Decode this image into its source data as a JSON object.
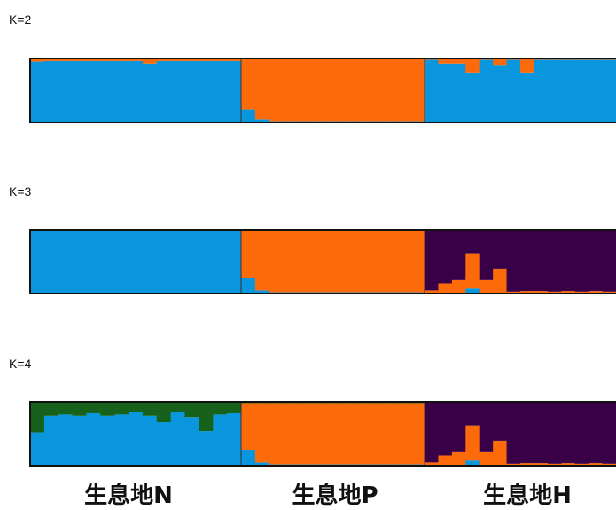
{
  "chart_data": [
    {
      "type": "stacked-bar",
      "title": "K=2",
      "colors": [
        "#0a96dc",
        "#fc6a0a"
      ],
      "groups": [
        {
          "label": "生息地N",
          "n": 15
        },
        {
          "label": "生息地P",
          "n": 13
        },
        {
          "label": "生息地H",
          "n": 14
        }
      ],
      "components": [
        [
          0.95,
          0.96,
          0.96,
          0.96,
          0.96,
          0.96,
          0.96,
          0.96,
          0.92,
          0.96,
          0.96,
          0.96,
          0.96,
          0.96,
          0.96,
          0.2,
          0.05,
          0.02,
          0.02,
          0.02,
          0.02,
          0.02,
          0.02,
          0.02,
          0.02,
          0.02,
          0.02,
          0.02,
          0.98,
          0.92,
          0.92,
          0.78,
          0.98,
          0.9,
          0.98,
          0.78,
          0.98,
          0.98,
          0.98,
          0.98,
          0.98,
          0.98
        ],
        [
          0.05,
          0.04,
          0.04,
          0.04,
          0.04,
          0.04,
          0.04,
          0.04,
          0.08,
          0.04,
          0.04,
          0.04,
          0.04,
          0.04,
          0.04,
          0.8,
          0.95,
          0.98,
          0.98,
          0.98,
          0.98,
          0.98,
          0.98,
          0.98,
          0.98,
          0.98,
          0.98,
          0.98,
          0.02,
          0.08,
          0.08,
          0.22,
          0.02,
          0.1,
          0.02,
          0.22,
          0.02,
          0.02,
          0.02,
          0.02,
          0.02,
          0.02
        ]
      ]
    },
    {
      "type": "stacked-bar",
      "title": "K=3",
      "colors": [
        "#0a96dc",
        "#fc6a0a",
        "#3a0047"
      ],
      "groups": [
        {
          "label": "生息地N",
          "n": 15
        },
        {
          "label": "生息地P",
          "n": 13
        },
        {
          "label": "生息地H",
          "n": 14
        }
      ],
      "components": [
        [
          0.98,
          0.98,
          0.98,
          0.98,
          0.98,
          0.98,
          0.98,
          0.98,
          0.98,
          0.98,
          0.98,
          0.98,
          0.98,
          0.98,
          0.98,
          0.25,
          0.05,
          0.02,
          0.02,
          0.02,
          0.02,
          0.02,
          0.02,
          0.02,
          0.02,
          0.02,
          0.02,
          0.02,
          0.01,
          0.01,
          0.01,
          0.08,
          0.01,
          0.01,
          0.01,
          0.01,
          0.01,
          0.01,
          0.01,
          0.01,
          0.01,
          0.01
        ],
        [
          0.02,
          0.02,
          0.02,
          0.02,
          0.02,
          0.02,
          0.02,
          0.02,
          0.02,
          0.02,
          0.02,
          0.02,
          0.02,
          0.02,
          0.02,
          0.75,
          0.95,
          0.98,
          0.98,
          0.98,
          0.98,
          0.98,
          0.98,
          0.98,
          0.98,
          0.98,
          0.98,
          0.98,
          0.04,
          0.15,
          0.2,
          0.55,
          0.2,
          0.38,
          0.02,
          0.03,
          0.03,
          0.02,
          0.03,
          0.02,
          0.03,
          0.02
        ],
        [
          0,
          0,
          0,
          0,
          0,
          0,
          0,
          0,
          0,
          0,
          0,
          0,
          0,
          0,
          0,
          0,
          0,
          0,
          0,
          0,
          0,
          0,
          0,
          0,
          0,
          0,
          0,
          0,
          0.95,
          0.84,
          0.79,
          0.37,
          0.79,
          0.61,
          0.97,
          0.96,
          0.96,
          0.97,
          0.96,
          0.97,
          0.96,
          0.97
        ]
      ]
    },
    {
      "type": "stacked-bar",
      "title": "K=4",
      "colors": [
        "#0a96dc",
        "#fc6a0a",
        "#3a0047",
        "#16621c"
      ],
      "groups": [
        {
          "label": "生息地N",
          "n": 15
        },
        {
          "label": "生息地P",
          "n": 13
        },
        {
          "label": "生息地H",
          "n": 14
        }
      ],
      "components": [
        [
          0.52,
          0.78,
          0.8,
          0.78,
          0.82,
          0.78,
          0.8,
          0.84,
          0.78,
          0.68,
          0.84,
          0.76,
          0.54,
          0.8,
          0.82,
          0.25,
          0.05,
          0.02,
          0.02,
          0.02,
          0.02,
          0.02,
          0.02,
          0.02,
          0.02,
          0.02,
          0.02,
          0.02,
          0.01,
          0.01,
          0.01,
          0.08,
          0.01,
          0.01,
          0.01,
          0.01,
          0.01,
          0.01,
          0.01,
          0.01,
          0.01,
          0.01
        ],
        [
          0,
          0,
          0,
          0,
          0,
          0,
          0,
          0,
          0,
          0,
          0,
          0,
          0,
          0,
          0,
          0.73,
          0.93,
          0.96,
          0.96,
          0.96,
          0.96,
          0.96,
          0.96,
          0.96,
          0.96,
          0.96,
          0.96,
          0.96,
          0.04,
          0.15,
          0.2,
          0.55,
          0.2,
          0.38,
          0.02,
          0.03,
          0.03,
          0.02,
          0.03,
          0.02,
          0.03,
          0.02
        ],
        [
          0,
          0,
          0,
          0,
          0,
          0,
          0,
          0,
          0,
          0,
          0,
          0,
          0,
          0,
          0,
          0,
          0,
          0,
          0,
          0,
          0,
          0,
          0,
          0,
          0,
          0,
          0,
          0,
          0.95,
          0.84,
          0.79,
          0.37,
          0.79,
          0.61,
          0.97,
          0.96,
          0.96,
          0.97,
          0.96,
          0.97,
          0.96,
          0.97
        ],
        [
          0.48,
          0.22,
          0.2,
          0.22,
          0.18,
          0.22,
          0.2,
          0.16,
          0.22,
          0.32,
          0.16,
          0.24,
          0.46,
          0.2,
          0.18,
          0.02,
          0.02,
          0.02,
          0.02,
          0.02,
          0.02,
          0.02,
          0.02,
          0.02,
          0.02,
          0.02,
          0.02,
          0.02,
          0,
          0,
          0,
          0,
          0,
          0,
          0,
          0,
          0,
          0,
          0,
          0,
          0,
          0
        ]
      ]
    }
  ]
}
